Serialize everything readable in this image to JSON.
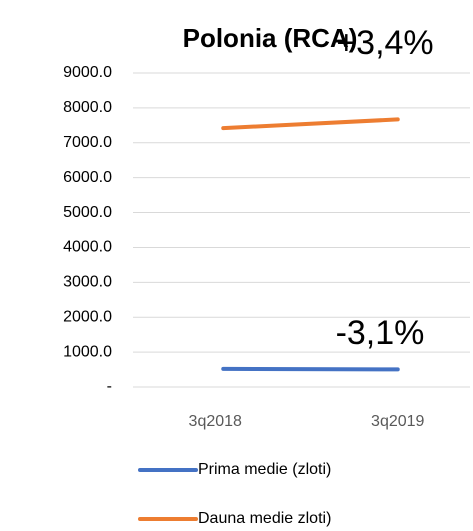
{
  "chart_data": {
    "type": "line",
    "title": "Polonia (RCA)",
    "categories": [
      "3q2018",
      "3q2019"
    ],
    "series": [
      {
        "name": "Prima medie (zloti)",
        "color": "#4472c4",
        "values": [
          520,
          504
        ]
      },
      {
        "name": "Dauna medie zloti)",
        "color": "#ed7d31",
        "values": [
          7420,
          7670
        ]
      }
    ],
    "annotations": [
      "+3,4%",
      "-3,1%"
    ],
    "ylim": [
      0,
      9000
    ],
    "yticks": [
      {
        "value": 0,
        "label": "-"
      },
      {
        "value": 1000,
        "label": "1000.0"
      },
      {
        "value": 2000,
        "label": "2000.0"
      },
      {
        "value": 3000,
        "label": "3000.0"
      },
      {
        "value": 4000,
        "label": "4000.0"
      },
      {
        "value": 5000,
        "label": "5000.0"
      },
      {
        "value": 6000,
        "label": "6000.0"
      },
      {
        "value": 7000,
        "label": "7000.0"
      },
      {
        "value": 8000,
        "label": "8000.0"
      },
      {
        "value": 9000,
        "label": "9000.0"
      }
    ],
    "grid": true,
    "legend": "bottom"
  }
}
